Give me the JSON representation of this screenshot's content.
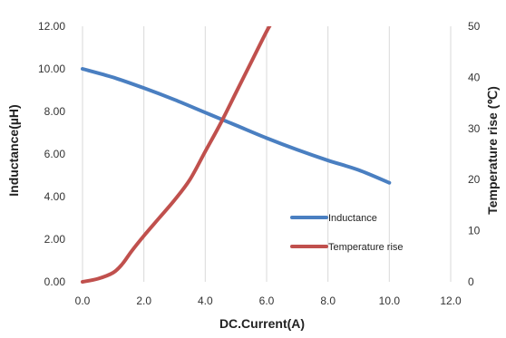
{
  "chart_data": {
    "type": "line",
    "title": "",
    "xlabel": "DC.Current(A)",
    "ylabel": "Inductance(µH)",
    "y2label": "Temperature rise (℃)",
    "xlim": [
      0,
      12
    ],
    "ylim": [
      0,
      12
    ],
    "y2lim": [
      0,
      50
    ],
    "x_ticks": [
      "0.0",
      "2.0",
      "4.0",
      "6.0",
      "8.0",
      "10.0",
      "12.0"
    ],
    "y_ticks": [
      "0.00",
      "2.00",
      "4.00",
      "6.00",
      "8.00",
      "10.00",
      "12.00"
    ],
    "y2_ticks": [
      "0",
      "10",
      "20",
      "30",
      "40",
      "50"
    ],
    "grid": "vertical",
    "legend_position": "bottom-right",
    "series": [
      {
        "name": "Inductance",
        "axis": "left",
        "color": "#4a7fc1",
        "x": [
          0,
          1,
          2,
          3,
          4,
          5,
          6,
          7,
          8,
          9,
          10
        ],
        "y": [
          10.0,
          9.6,
          9.1,
          8.55,
          7.95,
          7.35,
          6.75,
          6.2,
          5.7,
          5.25,
          4.65
        ]
      },
      {
        "name": "Temperature rise",
        "axis": "right",
        "color": "#c0504d",
        "x": [
          0,
          0.5,
          1.0,
          1.3,
          1.6,
          2.0,
          2.5,
          3.0,
          3.5,
          4.0,
          4.5,
          5.0,
          5.5,
          6.0,
          6.2
        ],
        "y": [
          0,
          0.6,
          1.8,
          3.5,
          6,
          9,
          12.5,
          16,
          20,
          25.5,
          31,
          37,
          43,
          49,
          51
        ]
      }
    ]
  }
}
